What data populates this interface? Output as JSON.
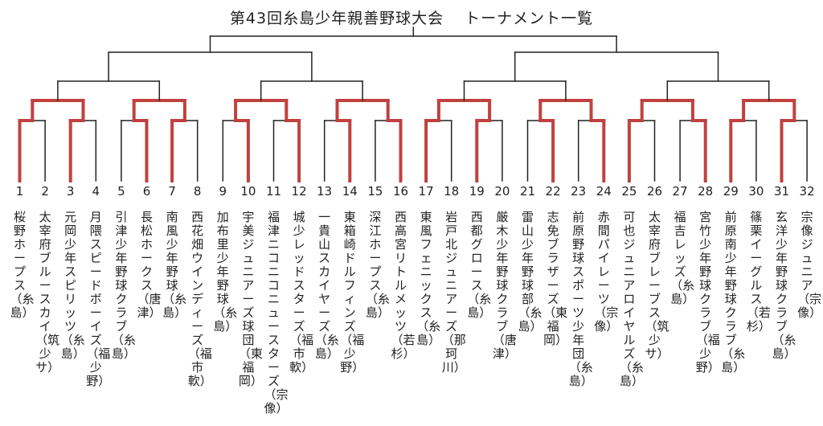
{
  "title": {
    "main": "第43回糸島少年親善野球大会",
    "sub": "トーナメント一覧"
  },
  "colors": {
    "winner_line": "#c0413f",
    "line": "#222222"
  },
  "teams": [
    {
      "no": "1",
      "name": "桜野ホープス（糸島）"
    },
    {
      "no": "2",
      "name": "太宰府ブルースカイ（筑少サ）"
    },
    {
      "no": "3",
      "name": "元岡少年スピリッツ（糸島）"
    },
    {
      "no": "4",
      "name": "月隈スピードボーイズ（福少野）"
    },
    {
      "no": "5",
      "name": "引津少年野球クラブ（糸島）"
    },
    {
      "no": "6",
      "name": "長松ホークス（唐津）"
    },
    {
      "no": "7",
      "name": "南風少年野球（糸島）"
    },
    {
      "no": "8",
      "name": "西花畑ウインディーズ（福市軟）"
    },
    {
      "no": "9",
      "name": "加布里少年野球（糸島）"
    },
    {
      "no": "10",
      "name": "宇美ジュニアーズ球団（東福岡）"
    },
    {
      "no": "11",
      "name": "福津ニコニコニュースターズ（宗像）"
    },
    {
      "no": "12",
      "name": "城少レッドスターズ（福市軟）"
    },
    {
      "no": "13",
      "name": "一貴山スカイヤーズ（糸島）"
    },
    {
      "no": "14",
      "name": "東箱崎ドルフィンズ（福少野）"
    },
    {
      "no": "15",
      "name": "深江ホープス（糸島）"
    },
    {
      "no": "16",
      "name": "西高宮リトルメッツ（若杉）"
    },
    {
      "no": "17",
      "name": "東風フェニックス（糸島）"
    },
    {
      "no": "18",
      "name": "岩戸北ジュニアーズ（那珂川）"
    },
    {
      "no": "19",
      "name": "西都グロース（糸島）"
    },
    {
      "no": "20",
      "name": "厳木少年野球クラブ（唐津）"
    },
    {
      "no": "21",
      "name": "雷山少年野球部（糸島）"
    },
    {
      "no": "22",
      "name": "志免ブラザーズ（東福岡）"
    },
    {
      "no": "23",
      "name": "前原野球スポーツ少年団（糸島）"
    },
    {
      "no": "24",
      "name": "赤間パイレーツ（宗像）"
    },
    {
      "no": "25",
      "name": "可也ジュニアロイヤルズ（糸島）"
    },
    {
      "no": "26",
      "name": "太宰府ブレーブス（筑少サ）"
    },
    {
      "no": "27",
      "name": "福吉レッズ（糸島）"
    },
    {
      "no": "28",
      "name": "宮竹少年野球クラブ（福少野）"
    },
    {
      "no": "29",
      "name": "前原南少年野球クラブ（糸島）"
    },
    {
      "no": "30",
      "name": "篠栗イーグルス（若杉）"
    },
    {
      "no": "31",
      "name": "玄洋少年野球クラブ（糸島）"
    },
    {
      "no": "32",
      "name": "宗像ジュニア（宗像）"
    }
  ],
  "round1_winners": [
    1,
    3,
    6,
    7,
    10,
    12,
    14,
    16,
    17,
    19,
    22,
    24,
    25,
    28,
    29,
    31
  ]
}
